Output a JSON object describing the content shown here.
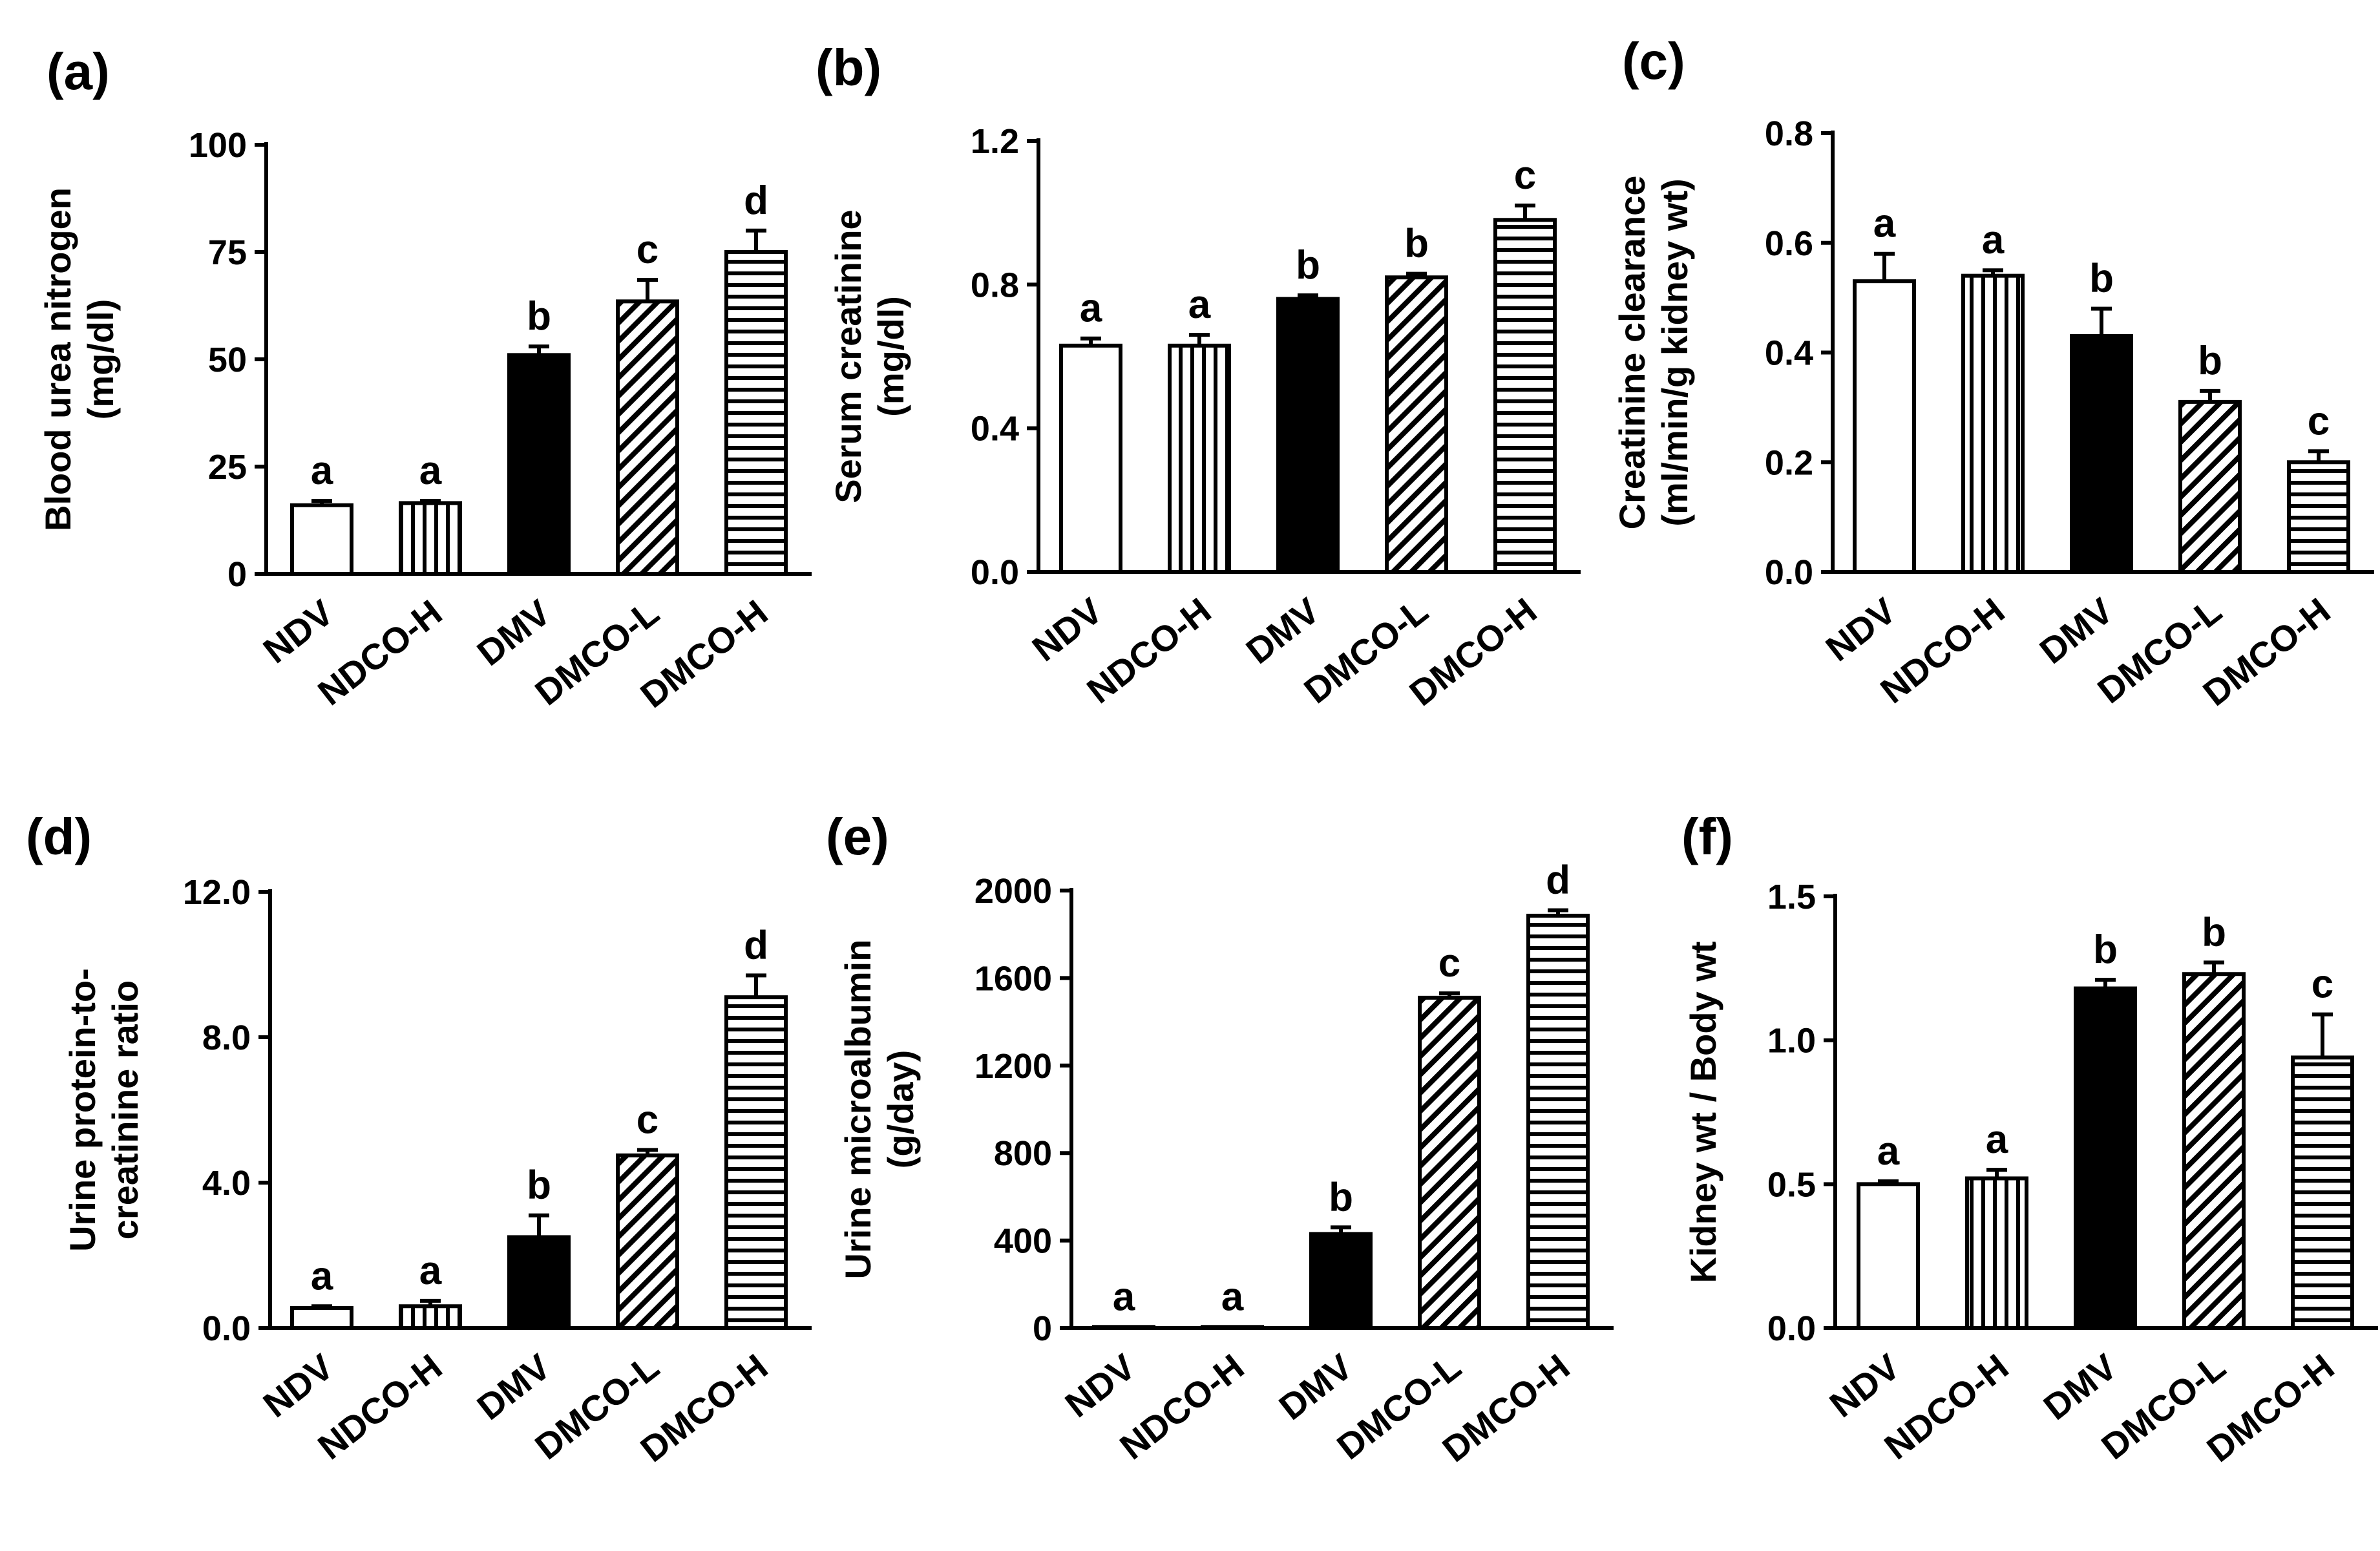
{
  "figure": {
    "colors": {
      "ink": "#000000",
      "fill_white": "#ffffff",
      "fill_black": "#000000"
    }
  },
  "chart_data": [
    {
      "panel": "(a)",
      "type": "bar",
      "categories": [
        "NDV",
        "NDCO-H",
        "DMV",
        "DMCO-L",
        "DMCO-H"
      ],
      "patterns": [
        "open",
        "vertical",
        "solid",
        "diagonal",
        "horizontal"
      ],
      "values": [
        16,
        16.5,
        51,
        63.5,
        75
      ],
      "errors": [
        1,
        0.5,
        2,
        5,
        5
      ],
      "letters": [
        "a",
        "a",
        "b",
        "c",
        "d"
      ],
      "ylabel": [
        "Blood urea nitrogen",
        "(mg/dl)"
      ],
      "ylim": [
        0,
        100
      ],
      "yticks": [
        0,
        25,
        50,
        75,
        100
      ],
      "ytick_labels": [
        "0",
        "25",
        "50",
        "75",
        "100"
      ]
    },
    {
      "panel": "(b)",
      "type": "bar",
      "categories": [
        "NDV",
        "NDCO-H",
        "DMV",
        "DMCO-L",
        "DMCO-H"
      ],
      "patterns": [
        "open",
        "vertical",
        "solid",
        "diagonal",
        "horizontal"
      ],
      "values": [
        0.63,
        0.63,
        0.76,
        0.82,
        0.98
      ],
      "errors": [
        0.02,
        0.03,
        0.01,
        0.01,
        0.04
      ],
      "letters": [
        "a",
        "a",
        "b",
        "b",
        "c"
      ],
      "ylabel": [
        "Serum creatinine",
        "(mg/dl)"
      ],
      "ylim": [
        0,
        1.2
      ],
      "yticks": [
        0,
        0.4,
        0.8,
        1.2
      ],
      "ytick_labels": [
        "0.0",
        "0.4",
        "0.8",
        "1.2"
      ]
    },
    {
      "panel": "(c)",
      "type": "bar",
      "categories": [
        "NDV",
        "NDCO-H",
        "DMV",
        "DMCO-L",
        "DMCO-H"
      ],
      "patterns": [
        "open",
        "vertical",
        "solid",
        "diagonal",
        "horizontal"
      ],
      "values": [
        0.53,
        0.54,
        0.43,
        0.31,
        0.2
      ],
      "errors": [
        0.05,
        0.01,
        0.05,
        0.02,
        0.02
      ],
      "letters": [
        "a",
        "a",
        "b",
        "b",
        "c"
      ],
      "ylabel": [
        "Creatinine clearance",
        "(ml/min/g kidney wt)"
      ],
      "ylim": [
        0,
        0.8
      ],
      "yticks": [
        0,
        0.2,
        0.4,
        0.6,
        0.8
      ],
      "ytick_labels": [
        "0.0",
        "0.2",
        "0.4",
        "0.6",
        "0.8"
      ]
    },
    {
      "panel": "(d)",
      "type": "bar",
      "categories": [
        "NDV",
        "NDCO-H",
        "DMV",
        "DMCO-L",
        "DMCO-H"
      ],
      "patterns": [
        "open",
        "vertical",
        "solid",
        "diagonal",
        "horizontal"
      ],
      "values": [
        0.55,
        0.6,
        2.5,
        4.75,
        9.1
      ],
      "errors": [
        0.05,
        0.15,
        0.6,
        0.15,
        0.6
      ],
      "letters": [
        "a",
        "a",
        "b",
        "c",
        "d"
      ],
      "ylabel": [
        "Urine protein-to-",
        "creatinine ratio"
      ],
      "ylim": [
        0,
        12
      ],
      "yticks": [
        0,
        4,
        8,
        12
      ],
      "ytick_labels": [
        "0.0",
        "4.0",
        "8.0",
        "12.0"
      ]
    },
    {
      "panel": "(e)",
      "type": "bar",
      "categories": [
        "NDV",
        "NDCO-H",
        "DMV",
        "DMCO-L",
        "DMCO-H"
      ],
      "patterns": [
        "open",
        "vertical",
        "solid",
        "diagonal",
        "horizontal"
      ],
      "values": [
        5,
        5,
        430,
        1510,
        1885
      ],
      "errors": [
        0,
        0,
        30,
        20,
        25
      ],
      "letters": [
        "a",
        "a",
        "b",
        "c",
        "d"
      ],
      "ylabel": [
        "Urine microalbumin",
        "(g/day)"
      ],
      "ylim": [
        0,
        2000
      ],
      "yticks": [
        0,
        400,
        800,
        1200,
        1600,
        2000
      ],
      "ytick_labels": [
        "0",
        "400",
        "800",
        "1200",
        "1600",
        "2000"
      ]
    },
    {
      "panel": "(f)",
      "type": "bar",
      "categories": [
        "NDV",
        "NDCO-H",
        "DMV",
        "DMCO-L",
        "DMCO-H"
      ],
      "patterns": [
        "open",
        "vertical",
        "solid",
        "diagonal",
        "horizontal"
      ],
      "values": [
        0.5,
        0.52,
        1.18,
        1.23,
        0.94
      ],
      "errors": [
        0.01,
        0.03,
        0.03,
        0.04,
        0.15
      ],
      "letters": [
        "a",
        "a",
        "b",
        "b",
        "c"
      ],
      "ylabel": [
        "Kidney wt / Body wt"
      ],
      "ylim": [
        0,
        1.5
      ],
      "yticks": [
        0,
        0.5,
        1.0,
        1.5
      ],
      "ytick_labels": [
        "0.0",
        "0.5",
        "1.0",
        "1.5"
      ]
    }
  ]
}
